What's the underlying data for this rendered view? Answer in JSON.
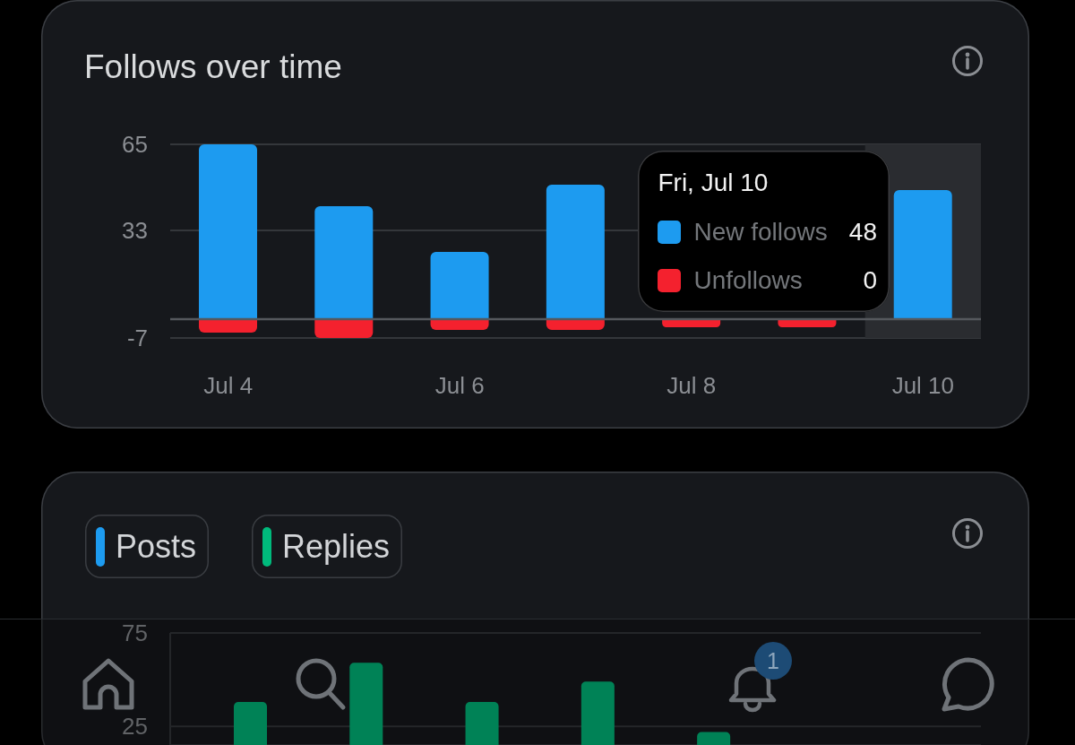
{
  "chart_data": [
    {
      "type": "bar",
      "title": "Follows over time",
      "categories": [
        "Jul 4",
        null,
        "Jul 6",
        null,
        "Jul 8",
        null,
        "Jul 10"
      ],
      "stacked": true,
      "series": [
        {
          "name": "New follows",
          "color": "#1d9bf0",
          "values": [
            65,
            42,
            25,
            50,
            null,
            null,
            48
          ]
        },
        {
          "name": "Unfollows",
          "color": "#f4212e",
          "values": [
            -5,
            -7,
            -4,
            -4,
            -3,
            -3,
            0
          ]
        }
      ],
      "ylim": [
        -7,
        65
      ],
      "yticks": [
        65,
        33,
        -7
      ],
      "grid": "y",
      "legend": "right",
      "annotations": [
        "Fri, Jul 10",
        "48",
        "0"
      ],
      "bands": [
        {
          "axis": "x",
          "from": "Jul 10",
          "to": "Jul 10",
          "color": "#2a2c30"
        }
      ]
    },
    {
      "type": "bar",
      "categories": [
        null,
        null,
        null,
        null,
        null,
        null,
        null
      ],
      "series": [
        {
          "name": "Posts",
          "color": "#1d9bf0",
          "values": [
            null,
            null,
            null,
            null,
            null,
            null,
            null
          ]
        },
        {
          "name": "Replies",
          "color": "#00ba7c",
          "values": [
            38,
            59,
            38,
            49,
            22,
            null,
            null
          ]
        }
      ],
      "ylim": [
        15,
        75
      ],
      "yticks": [
        75,
        25
      ],
      "grid": "y",
      "legend": "top left",
      "tick_labels": "y",
      "annotations": [
        "1"
      ]
    }
  ]
}
